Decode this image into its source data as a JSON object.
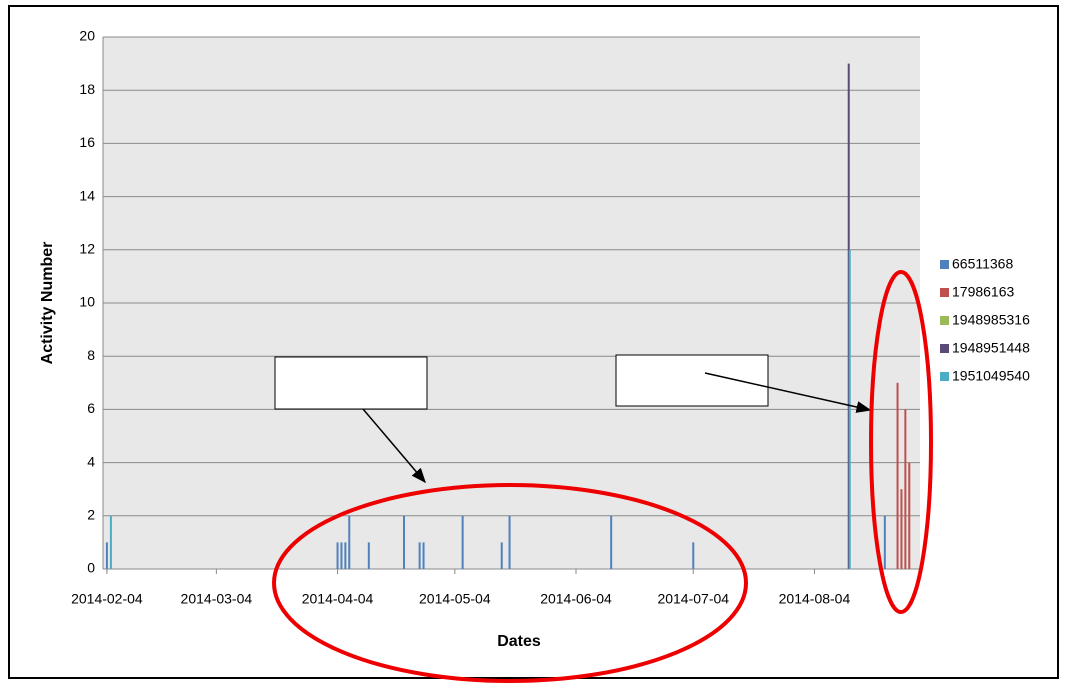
{
  "chart_data": {
    "type": "bar",
    "x_label": "Dates",
    "y_label": "Activity Number",
    "x": [
      "2014-02-04",
      "2014-04-04",
      "2014-04-05",
      "2014-04-06",
      "2014-04-07",
      "2014-04-12",
      "2014-04-21",
      "2014-04-25",
      "2014-04-26",
      "2014-05-06",
      "2014-05-16",
      "2014-05-18",
      "2014-06-13",
      "2014-07-04",
      "2014-08-12",
      "2014-08-22",
      "2014-08-25",
      "2014-08-26",
      "2014-08-27",
      "2014-08-28"
    ],
    "series": [
      {
        "name": "66511368",
        "color": "#4f81bd",
        "values": [
          1,
          1,
          1,
          1,
          2,
          1,
          2,
          1,
          1,
          2,
          1,
          2,
          2,
          1,
          null,
          2,
          null,
          null,
          null,
          null
        ]
      },
      {
        "name": "17986163",
        "color": "#c0504d",
        "values": [
          null,
          null,
          null,
          null,
          null,
          null,
          null,
          null,
          null,
          null,
          null,
          null,
          null,
          null,
          null,
          null,
          7,
          3,
          6,
          4
        ]
      },
      {
        "name": "1948985316",
        "color": "#9bbb59",
        "values": [
          null,
          null,
          null,
          null,
          null,
          null,
          null,
          null,
          null,
          null,
          null,
          null,
          null,
          null,
          null,
          null,
          null,
          null,
          null,
          null
        ]
      },
      {
        "name": "1948951448",
        "color": "#5a4a78",
        "values": [
          null,
          null,
          null,
          null,
          null,
          null,
          null,
          null,
          null,
          null,
          null,
          null,
          null,
          null,
          19,
          null,
          null,
          null,
          null,
          null
        ]
      },
      {
        "name": "1951049540",
        "color": "#4bacc6",
        "values": [
          2,
          null,
          null,
          null,
          null,
          null,
          null,
          null,
          null,
          null,
          null,
          null,
          null,
          null,
          12,
          null,
          null,
          null,
          null,
          null
        ]
      }
    ],
    "xlim": [
      "2014-02-03",
      "2014-08-31"
    ],
    "xticks": [
      "2014-02-04",
      "2014-03-04",
      "2014-04-04",
      "2014-05-04",
      "2014-06-04",
      "2014-07-04",
      "2014-08-04"
    ],
    "ylim": [
      0,
      20
    ],
    "yticks": [
      0,
      2,
      4,
      6,
      8,
      10,
      12,
      14,
      16,
      18,
      20
    ],
    "grid": true,
    "legend": "right"
  }
}
